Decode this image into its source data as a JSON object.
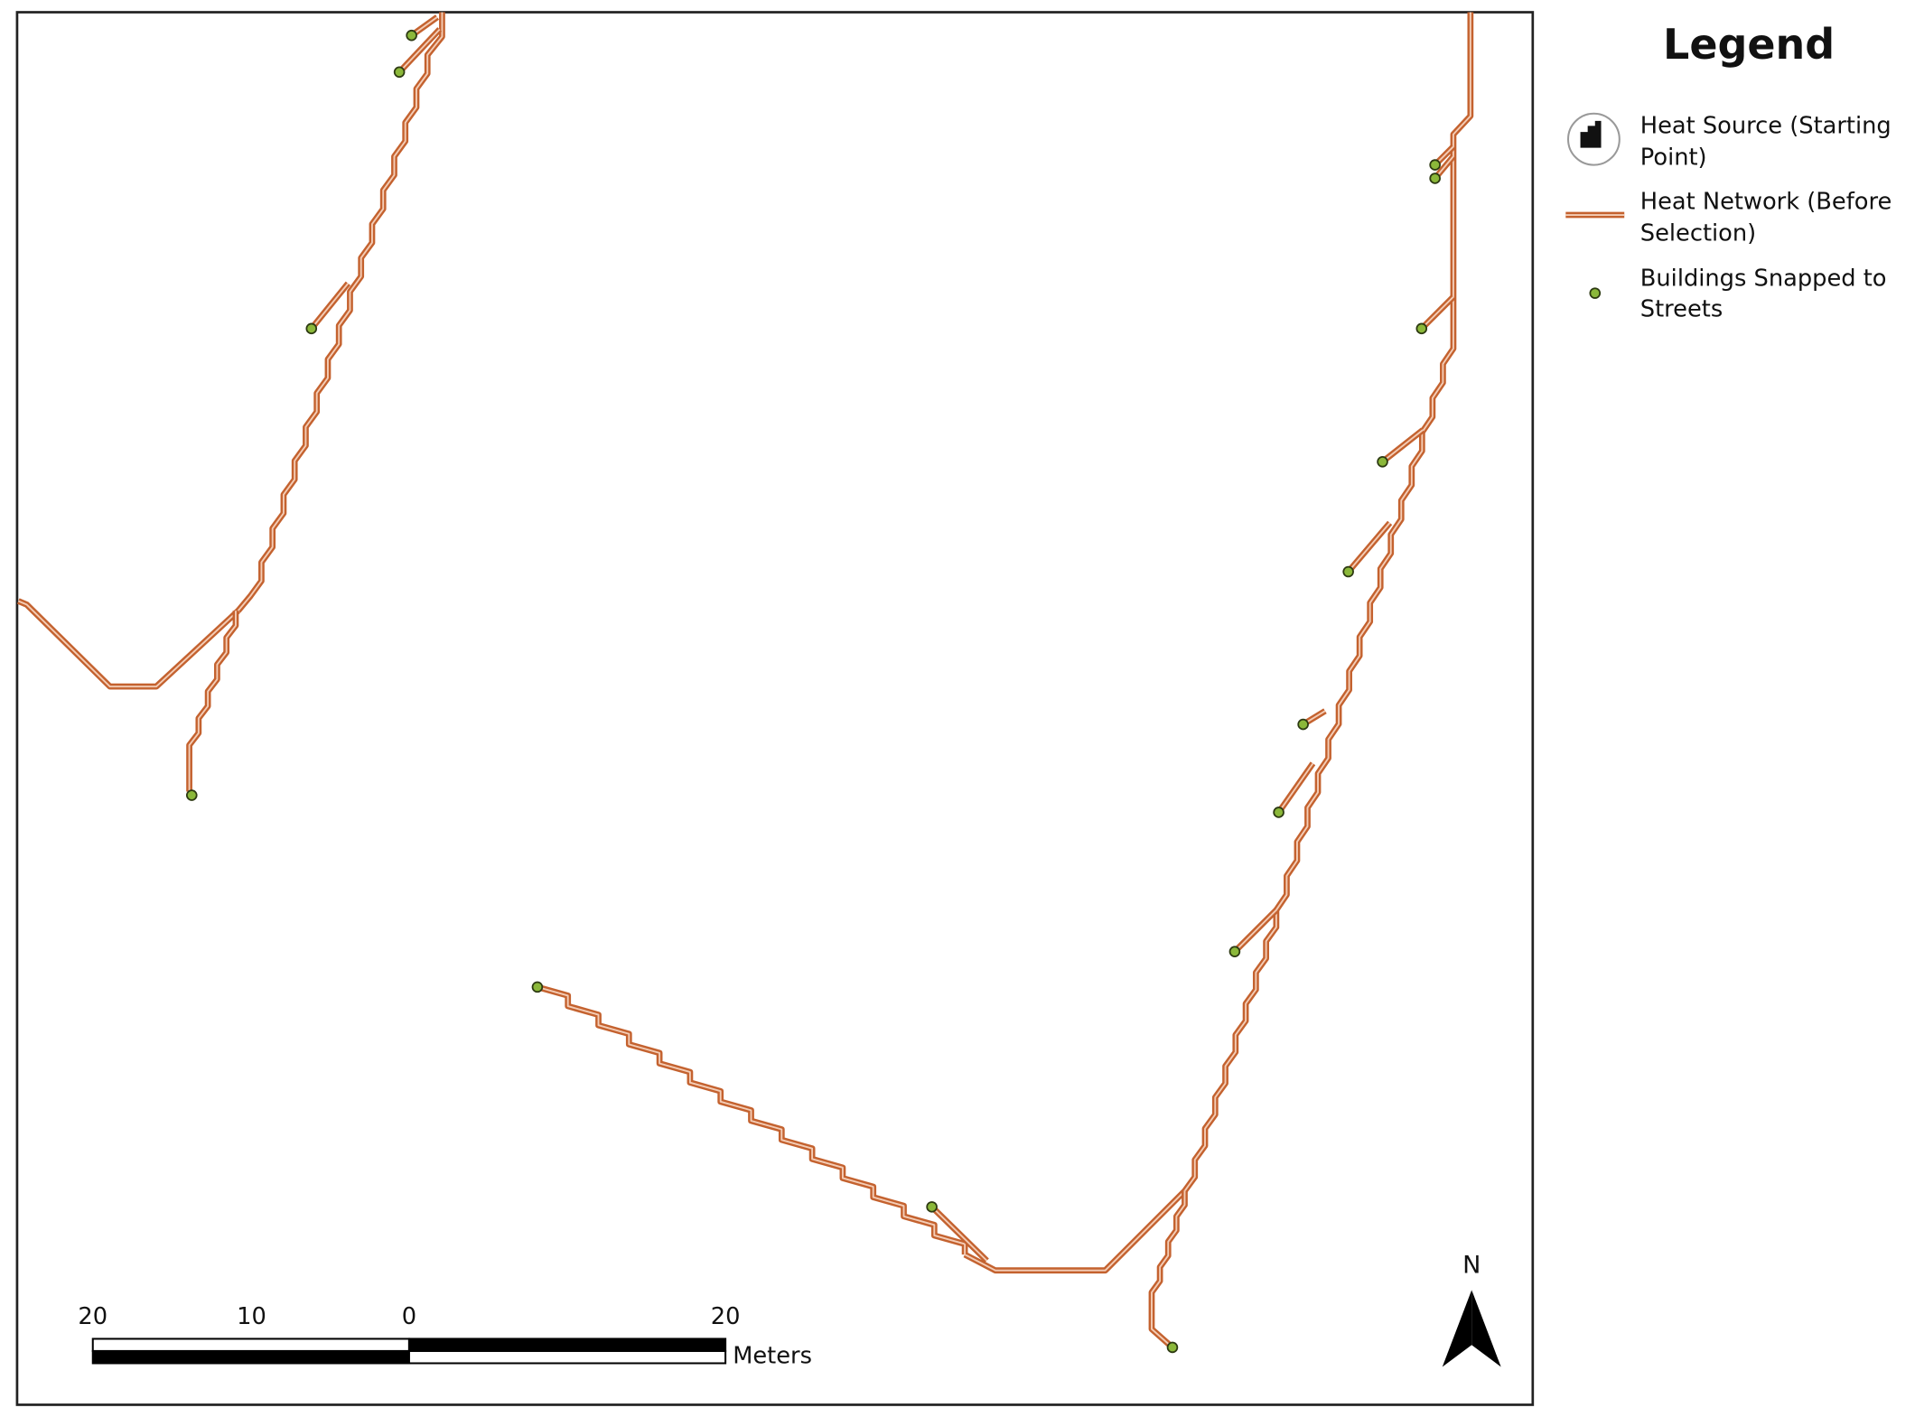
{
  "legend": {
    "title": "Legend",
    "items": [
      {
        "lines": [
          "Heat Source (Starting",
          "Point)"
        ]
      },
      {
        "lines": [
          "Heat Network (Before",
          "Selection)"
        ]
      },
      {
        "lines": [
          "Buildings Snapped to",
          "Streets"
        ]
      }
    ]
  },
  "scale_bar": {
    "labels": [
      "20",
      "10",
      "0",
      "20"
    ],
    "unit": "Meters"
  },
  "north_arrow": {
    "label": "N"
  }
}
